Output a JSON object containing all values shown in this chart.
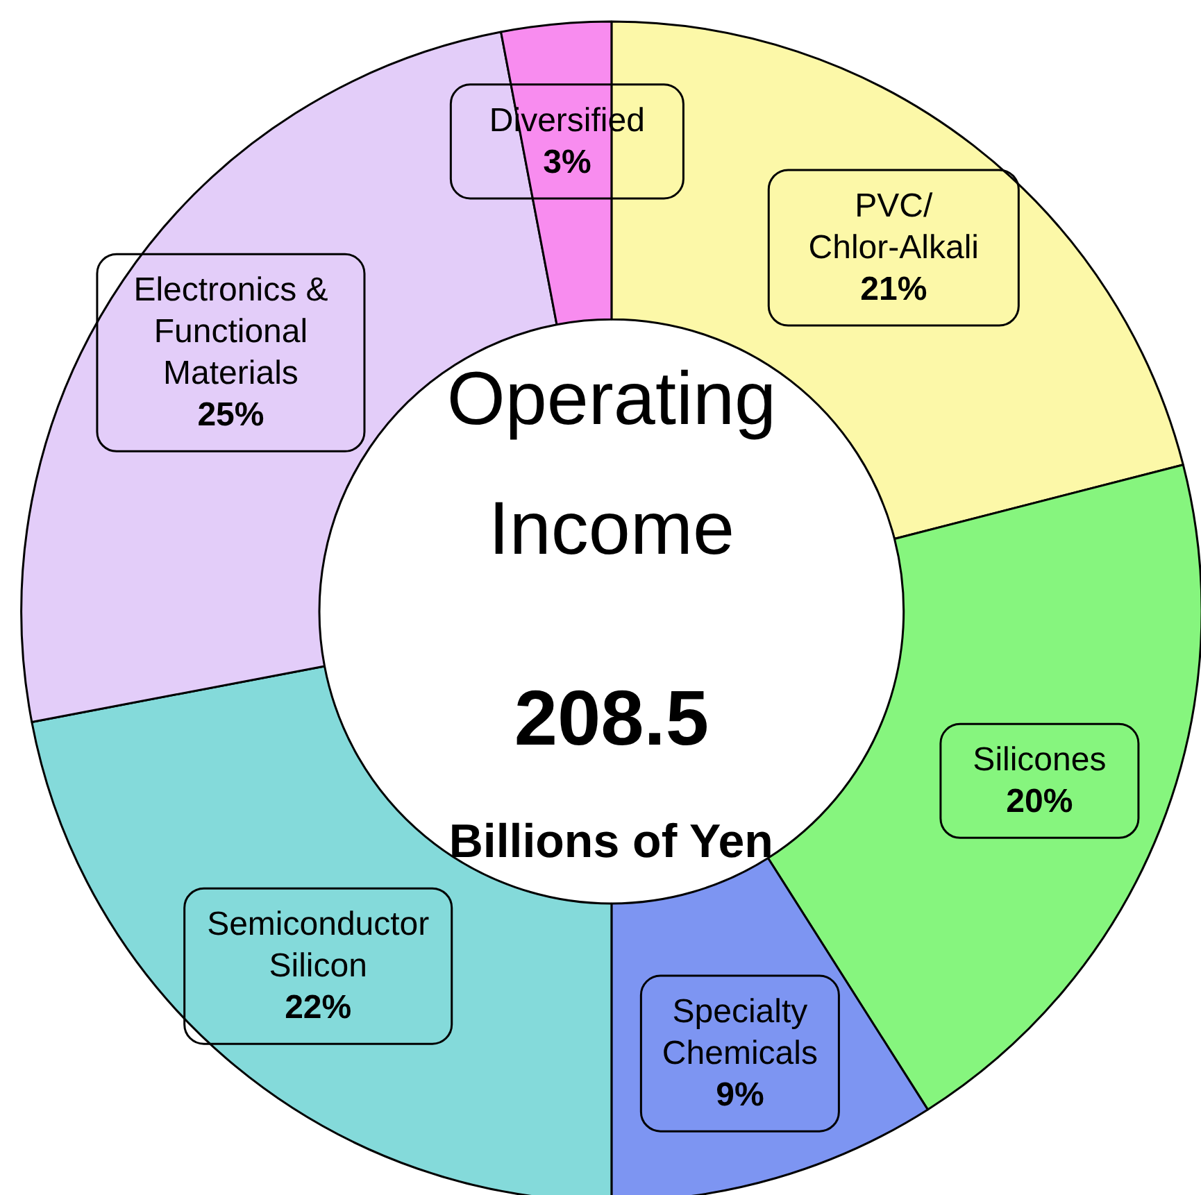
{
  "chart_data": {
    "type": "donut",
    "title": "Operating Income",
    "annotations": [
      "208.5",
      "Billions of Yen"
    ],
    "categories": [
      "PVC/\nChlor-Alkali",
      "Silicones",
      "Specialty\nChemicals",
      "Semiconductor\nSilicon",
      "Electronics &\nFunctional\nMaterials",
      "Diversified"
    ],
    "values": [
      21,
      20,
      9,
      22,
      25,
      3
    ],
    "value_labels": [
      "21%",
      "20%",
      "9%",
      "22%",
      "25%",
      "3%"
    ],
    "colors": [
      "#fcf8a8",
      "#86f57e",
      "#7d95f2",
      "#84dada",
      "#e3cdf9",
      "#f88cef"
    ]
  }
}
